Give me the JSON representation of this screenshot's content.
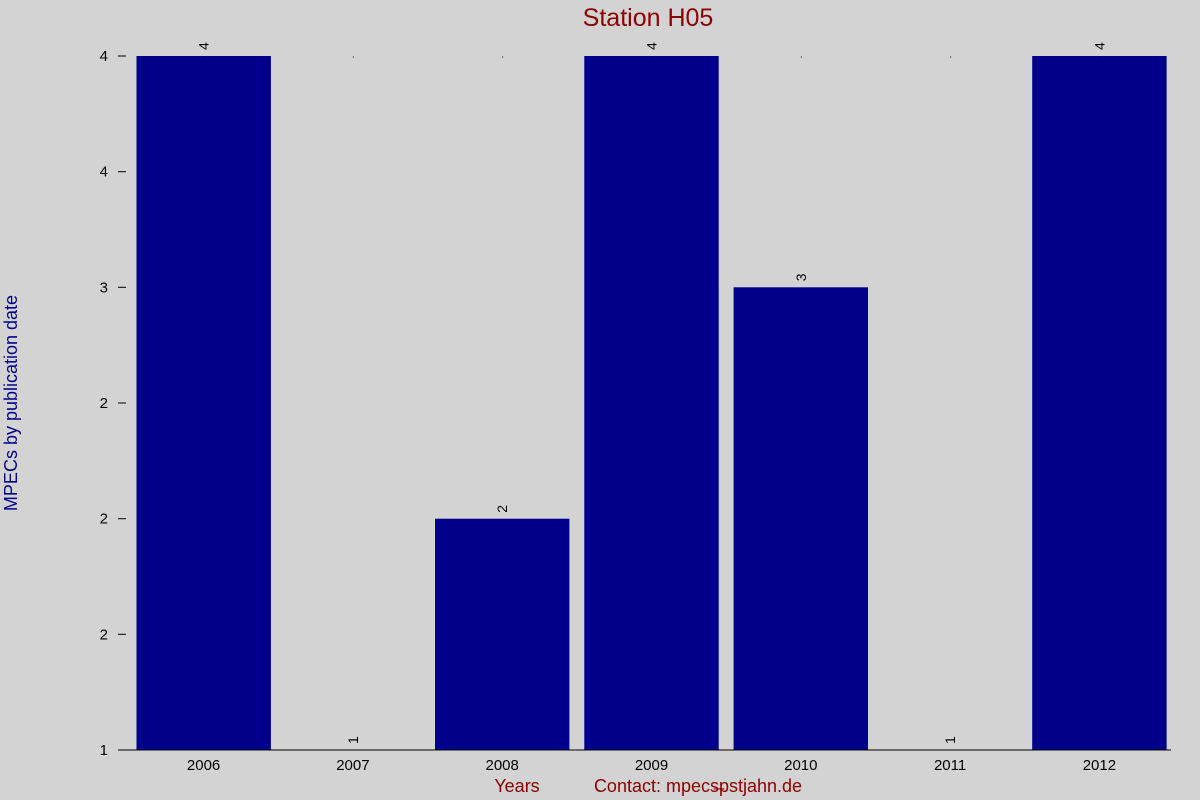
{
  "chart_data": {
    "type": "bar",
    "title": "Station H05",
    "xlabel": "Years",
    "ylabel": "MPECs by publication date",
    "footer": "Contact: mpecs̶pstjahn.de",
    "categories": [
      "2006",
      "2007",
      "2008",
      "2009",
      "2010",
      "2011",
      "2012"
    ],
    "values": [
      4,
      1,
      2,
      4,
      3,
      1,
      4
    ],
    "data_labels": [
      "4",
      "1",
      "2",
      "4",
      "3",
      "1",
      "4"
    ],
    "ylim": [
      1,
      4
    ],
    "y_ticks": [
      {
        "value": 1,
        "label": "1"
      },
      {
        "value": 1.5,
        "label": "2"
      },
      {
        "value": 2,
        "label": "2"
      },
      {
        "value": 2.5,
        "label": "2"
      },
      {
        "value": 3,
        "label": "3"
      },
      {
        "value": 3.5,
        "label": "4"
      },
      {
        "value": 4,
        "label": "4"
      }
    ],
    "grid": false,
    "legend": "none",
    "bar_color": "#00008b"
  }
}
